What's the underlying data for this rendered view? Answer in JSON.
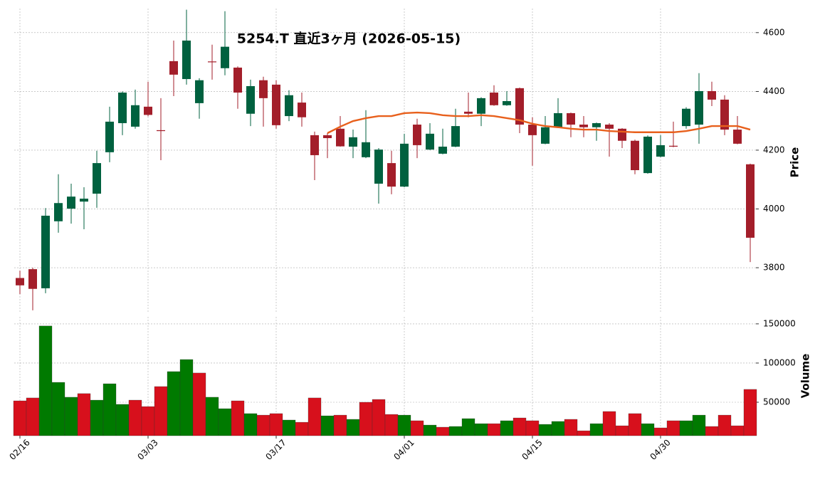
{
  "chart_data": {
    "type": "candlestick",
    "title": "5254.T  直近3ヶ月  (2026-05-15)",
    "categories": [
      "02/16",
      null,
      null,
      null,
      null,
      null,
      null,
      null,
      null,
      null,
      "03/03",
      null,
      null,
      null,
      null,
      null,
      null,
      null,
      null,
      null,
      "03/17",
      null,
      null,
      null,
      null,
      null,
      null,
      null,
      null,
      null,
      "04/01",
      null,
      null,
      null,
      null,
      null,
      null,
      null,
      null,
      null,
      "04/15",
      null,
      null,
      null,
      null,
      null,
      null,
      null,
      null,
      null,
      "04/30",
      null,
      null,
      null,
      null,
      null,
      null,
      null
    ],
    "open": [
      3765,
      3795,
      3730,
      3958,
      4001,
      4025,
      4052,
      4193,
      4292,
      4280,
      4348,
      4268,
      4503,
      4442,
      4360,
      4502,
      4479,
      4481,
      4324,
      4438,
      4423,
      4316,
      4362,
      4251,
      4251,
      4273,
      4212,
      4176,
      4086,
      4156,
      4076,
      4287,
      4202,
      4188,
      4212,
      4331,
      4324,
      4396,
      4353,
      4411,
      4287,
      4222,
      4278,
      4326,
      4287,
      4278,
      4287,
      4273,
      4232,
      4122,
      4178,
      4215,
      4282,
      4287,
      4401,
      4372,
      4270,
      4152
    ],
    "high": [
      3790,
      3800,
      4003,
      4118,
      4086,
      4074,
      4198,
      4348,
      4400,
      4406,
      4433,
      4377,
      4573,
      4678,
      4445,
      4559,
      4673,
      4485,
      4440,
      4450,
      4438,
      4404,
      4396,
      4263,
      4258,
      4316,
      4270,
      4336,
      4207,
      4198,
      4256,
      4307,
      4292,
      4273,
      4341,
      4396,
      4380,
      4421,
      4401,
      4413,
      4312,
      4316,
      4377,
      4328,
      4316,
      4294,
      4292,
      4275,
      4236,
      4250,
      4251,
      4297,
      4346,
      4462,
      4433,
      4387,
      4316,
      4154
    ],
    "low": [
      3710,
      3655,
      3713,
      3919,
      3950,
      3931,
      4004,
      4159,
      4251,
      4273,
      4315,
      4166,
      4384,
      4423,
      4307,
      4440,
      4455,
      4341,
      4282,
      4280,
      4273,
      4299,
      4280,
      4098,
      4173,
      4212,
      4173,
      4173,
      4018,
      4050,
      4074,
      4173,
      4200,
      4186,
      4210,
      4312,
      4282,
      4351,
      4351,
      4258,
      4147,
      4220,
      4276,
      4244,
      4244,
      4232,
      4178,
      4207,
      4118,
      4120,
      4176,
      4210,
      4273,
      4222,
      4350,
      4251,
      4220,
      3819
    ],
    "close": [
      3740,
      3728,
      3977,
      4020,
      4042,
      4035,
      4156,
      4297,
      4396,
      4353,
      4320,
      4265,
      4457,
      4573,
      4438,
      4500,
      4552,
      4396,
      4418,
      4377,
      4285,
      4387,
      4312,
      4183,
      4241,
      4213,
      4244,
      4227,
      4202,
      4076,
      4222,
      4217,
      4256,
      4212,
      4282,
      4324,
      4377,
      4353,
      4367,
      4287,
      4251,
      4278,
      4326,
      4287,
      4278,
      4292,
      4273,
      4232,
      4132,
      4246,
      4217,
      4212,
      4341,
      4401,
      4372,
      4270,
      4222,
      3902
    ],
    "up_color": "#00613f",
    "down_color": "#a31e2a",
    "moving_average": {
      "color": "#e8601c",
      "values": [
        null,
        null,
        null,
        null,
        null,
        null,
        null,
        null,
        null,
        null,
        null,
        null,
        null,
        null,
        null,
        null,
        null,
        null,
        null,
        null,
        null,
        null,
        null,
        null,
        4258,
        4280,
        4299,
        4309,
        4316,
        4316,
        4326,
        4328,
        4326,
        4319,
        4316,
        4316,
        4319,
        4316,
        4309,
        4302,
        4290,
        4282,
        4278,
        4273,
        4270,
        4270,
        4265,
        4263,
        4261,
        4261,
        4261,
        4261,
        4265,
        4273,
        4282,
        4282,
        4282,
        4270
      ]
    },
    "ylabel": "Price",
    "ylim": [
      3645,
      4682
    ],
    "yticks": [
      3800,
      4000,
      4200,
      4400,
      4600
    ],
    "grid": true,
    "volume": {
      "ylabel": "Volume",
      "up_color": "#007a00",
      "down_color": "#d7101c",
      "values": [
        51800,
        55500,
        147300,
        75400,
        56400,
        61000,
        52700,
        73600,
        47300,
        52700,
        44500,
        70000,
        89100,
        104500,
        87300,
        56400,
        41800,
        51800,
        35500,
        33600,
        35500,
        27300,
        24500,
        55500,
        32700,
        33600,
        28200,
        50000,
        53600,
        34500,
        33600,
        26400,
        20900,
        18200,
        19100,
        29100,
        22700,
        22700,
        26400,
        30000,
        26400,
        21800,
        25500,
        28200,
        13600,
        22700,
        38200,
        20000,
        35500,
        22700,
        17300,
        26400,
        26400,
        33600,
        19100,
        33600,
        20000,
        66400
      ],
      "ylim": [
        7300,
        159000
      ],
      "yticks": [
        50000,
        100000,
        150000
      ]
    }
  }
}
